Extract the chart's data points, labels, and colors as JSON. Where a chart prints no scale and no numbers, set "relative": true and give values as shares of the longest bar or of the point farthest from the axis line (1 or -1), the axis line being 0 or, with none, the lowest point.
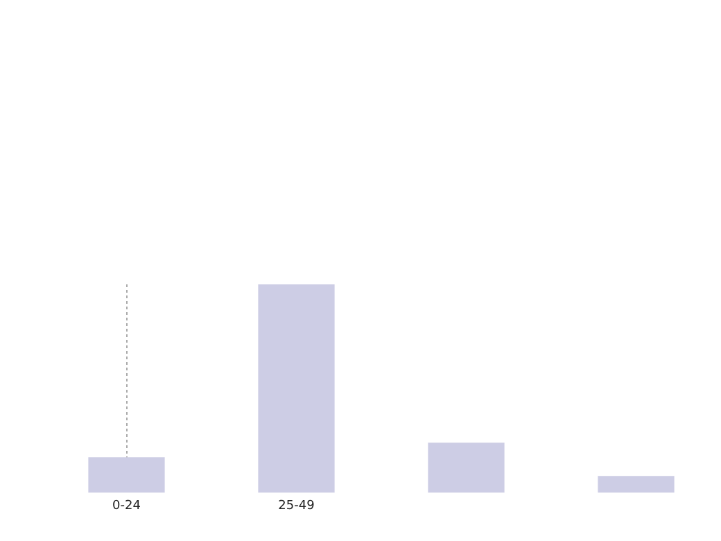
{
  "chart_data": {
    "type": "bar",
    "relative": true,
    "categories": [
      "0-24",
      "25-49",
      null,
      null
    ],
    "values": [
      0.17,
      1,
      0.24,
      0.08
    ],
    "color": "#cdcde5",
    "grid": "x"
  }
}
